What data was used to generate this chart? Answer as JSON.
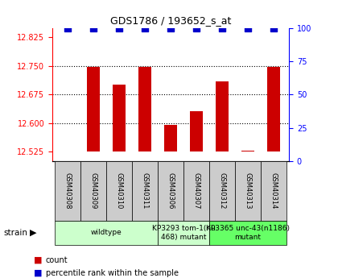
{
  "title": "GDS1786 / 193652_s_at",
  "samples": [
    "GSM40308",
    "GSM40309",
    "GSM40310",
    "GSM40311",
    "GSM40306",
    "GSM40307",
    "GSM40312",
    "GSM40313",
    "GSM40314"
  ],
  "counts": [
    12.525,
    12.748,
    12.7,
    12.748,
    12.595,
    12.632,
    12.71,
    12.527,
    12.748
  ],
  "percentiles": [
    100,
    100,
    100,
    100,
    100,
    100,
    100,
    100,
    100
  ],
  "ylim_left": [
    12.5,
    12.85
  ],
  "ylim_right": [
    0,
    100
  ],
  "yticks_left": [
    12.525,
    12.6,
    12.675,
    12.75,
    12.825
  ],
  "yticks_right": [
    0,
    25,
    50,
    75,
    100
  ],
  "bar_color": "#cc0000",
  "dot_color": "#0000cc",
  "dot_size": 35,
  "bar_bottom": 12.525,
  "xlim": [
    -0.6,
    8.6
  ],
  "groups": [
    {
      "label": "wildtype",
      "start": 0,
      "end": 4,
      "color": "#ccffcc"
    },
    {
      "label": "KP3293 tom-1(nu\n468) mutant",
      "start": 4,
      "end": 6,
      "color": "#ccffcc"
    },
    {
      "label": "KP3365 unc-43(n1186)\nmutant",
      "start": 6,
      "end": 9,
      "color": "#66ff66"
    }
  ],
  "grid_yticks": [
    12.6,
    12.675,
    12.75
  ],
  "bar_color_red": "#cc0000",
  "legend_count_color": "#cc0000",
  "legend_percentile_color": "#0000cc",
  "sample_box_color": "#cccccc",
  "left_spine_color": "red",
  "right_spine_color": "blue",
  "title_fontsize": 9,
  "axis_fontsize": 7,
  "sample_fontsize": 6,
  "group_fontsize": 6.5,
  "legend_fontsize": 7
}
